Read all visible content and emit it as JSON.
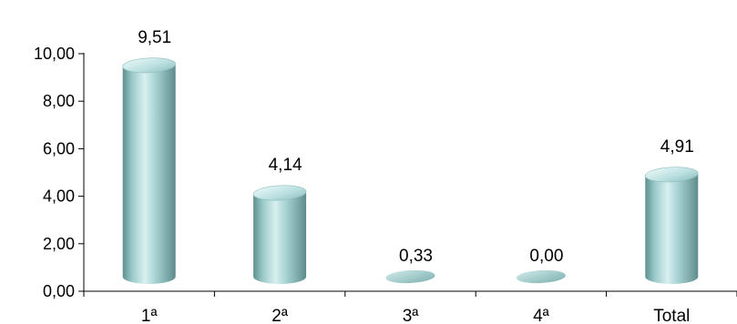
{
  "chart_data": {
    "type": "bar",
    "categories": [
      "1ª",
      "2ª",
      "3ª",
      "4ª",
      "Total"
    ],
    "values": [
      9.51,
      4.14,
      0.33,
      0.0,
      4.91
    ],
    "value_labels": [
      "9,51",
      "4,14",
      "0,33",
      "0,00",
      "4,91"
    ],
    "y_ticks": [
      0,
      2,
      4,
      6,
      8,
      10
    ],
    "y_tick_labels": [
      "0,00",
      "2,00",
      "4,00",
      "6,00",
      "8,00",
      "10,00"
    ],
    "ylim": [
      0,
      10
    ],
    "grid": false,
    "legend": "none",
    "bar_style": "3d-cylinder",
    "bar_color": "#a9d3d3",
    "bar_shadow_color": "#6f9f9f",
    "title": "",
    "xlabel": "",
    "ylabel": ""
  }
}
